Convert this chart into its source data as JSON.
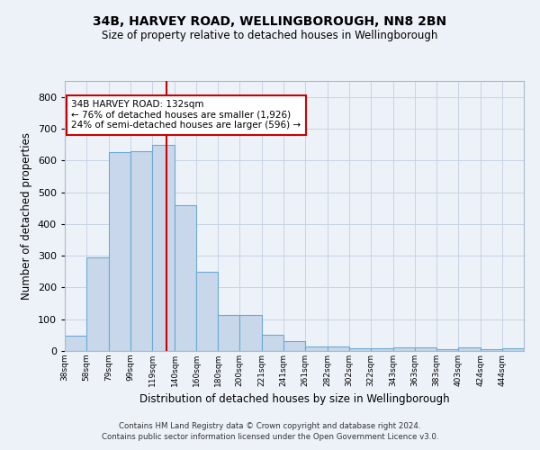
{
  "title1": "34B, HARVEY ROAD, WELLINGBOROUGH, NN8 2BN",
  "title2": "Size of property relative to detached houses in Wellingborough",
  "xlabel": "Distribution of detached houses by size in Wellingborough",
  "ylabel": "Number of detached properties",
  "annotation_line1": "34B HARVEY ROAD: 132sqm",
  "annotation_line2": "← 76% of detached houses are smaller (1,926)",
  "annotation_line3": "24% of semi-detached houses are larger (596) →",
  "property_size": 132,
  "bar_left_edges": [
    38,
    58,
    79,
    99,
    119,
    140,
    160,
    180,
    200,
    221,
    241,
    261,
    282,
    302,
    322,
    343,
    363,
    383,
    403,
    424,
    444
  ],
  "bar_widths": [
    20,
    21,
    20,
    20,
    21,
    20,
    20,
    20,
    21,
    20,
    20,
    21,
    20,
    20,
    21,
    20,
    20,
    20,
    21,
    20,
    20
  ],
  "bar_heights": [
    48,
    295,
    625,
    628,
    648,
    460,
    248,
    112,
    112,
    52,
    30,
    15,
    15,
    8,
    8,
    10,
    10,
    5,
    10,
    5,
    8
  ],
  "bar_color": "#c8d8ea",
  "bar_edge_color": "#6aaad4",
  "red_line_color": "#cc0000",
  "annotation_box_color": "#ffffff",
  "annotation_box_edge": "#cc0000",
  "grid_color": "#c8d4e4",
  "background_color": "#edf2f8",
  "tick_labels": [
    "38sqm",
    "58sqm",
    "79sqm",
    "99sqm",
    "119sqm",
    "140sqm",
    "160sqm",
    "180sqm",
    "200sqm",
    "221sqm",
    "241sqm",
    "261sqm",
    "282sqm",
    "302sqm",
    "322sqm",
    "343sqm",
    "363sqm",
    "383sqm",
    "403sqm",
    "424sqm",
    "444sqm"
  ],
  "ylim": [
    0,
    850
  ],
  "yticks": [
    0,
    100,
    200,
    300,
    400,
    500,
    600,
    700,
    800
  ],
  "footer1": "Contains HM Land Registry data © Crown copyright and database right 2024.",
  "footer2": "Contains public sector information licensed under the Open Government Licence v3.0."
}
